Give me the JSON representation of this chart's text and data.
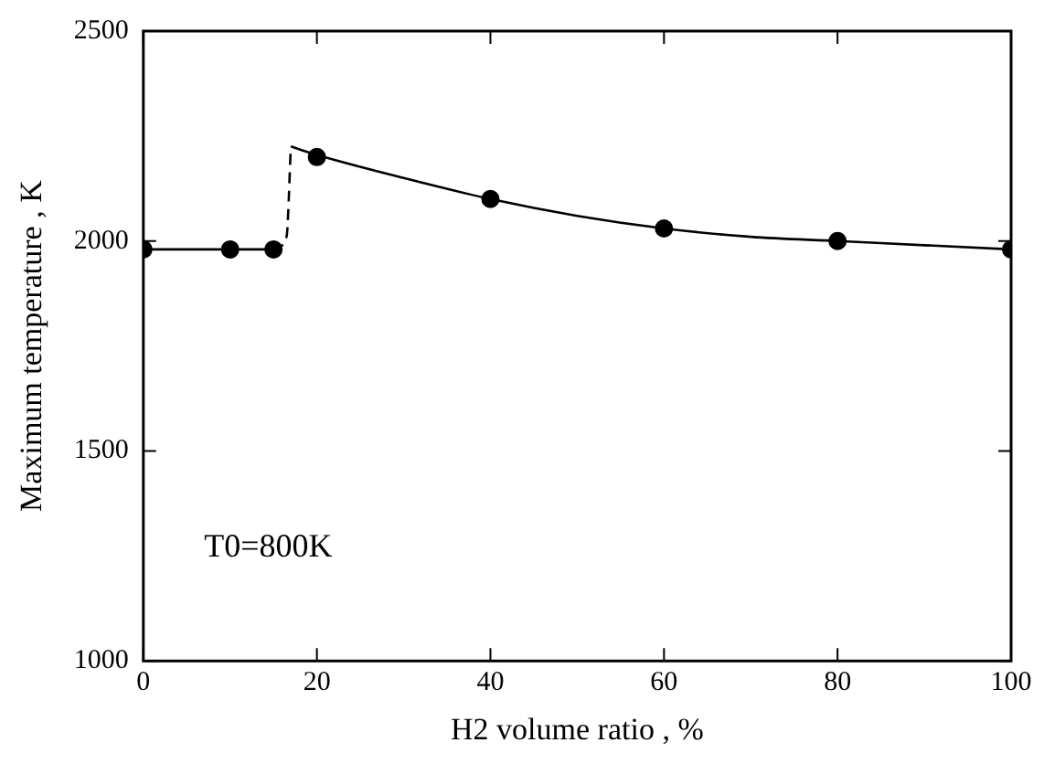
{
  "chart_data": {
    "type": "line",
    "xlabel": "H2 volume ratio , %",
    "ylabel": "Maximum temperature , K",
    "xlim": [
      0,
      100
    ],
    "xticks": [
      0,
      20,
      40,
      60,
      80,
      100
    ],
    "ylim": [
      1000,
      2500
    ],
    "yticks": [
      1000,
      1500,
      2000,
      2500
    ],
    "grid": false,
    "legend": false,
    "annotations": [
      "T0=800K"
    ],
    "series": [
      {
        "type": "scatter",
        "color": "#000000",
        "marker": "circle",
        "x": [
          0,
          10,
          15,
          20,
          40,
          60,
          80,
          100
        ],
        "values": [
          1980,
          1980,
          1980,
          2200,
          2100,
          2030,
          2000,
          1980
        ]
      },
      {
        "type": "line",
        "color": "#000000",
        "marker": "none",
        "line_style": "solid",
        "x": [
          0,
          15
        ],
        "values": [
          1980,
          1980
        ]
      },
      {
        "type": "line",
        "color": "#000000",
        "marker": "none",
        "line_style": "dashed",
        "x": [
          15,
          16.5,
          17
        ],
        "values": [
          1980,
          2010,
          2225
        ]
      },
      {
        "type": "line",
        "color": "#000000",
        "marker": "none",
        "line_style": "solid",
        "x": [
          17,
          20,
          30,
          40,
          50,
          60,
          70,
          80,
          90,
          100
        ],
        "values": [
          2225,
          2205,
          2150,
          2100,
          2060,
          2030,
          2010,
          2000,
          1990,
          1980
        ]
      }
    ]
  }
}
